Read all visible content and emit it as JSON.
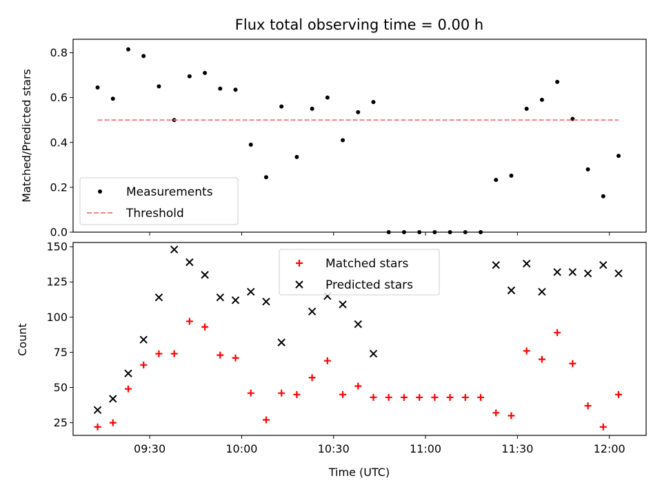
{
  "chart_data": [
    {
      "type": "scatter",
      "title": "Flux total observing time = 0.00 h",
      "xlabel": "",
      "ylabel": "Matched/Predicted stars",
      "xlim": [
        "09:05",
        "12:12"
      ],
      "ylim": [
        0,
        0.86
      ],
      "yticks": [
        0.0,
        0.2,
        0.4,
        0.6,
        0.8
      ],
      "ytick_labels": [
        "0.0",
        "0.2",
        "0.4",
        "0.6",
        "0.8"
      ],
      "legend_position": "lower-left",
      "series": [
        {
          "name": "Measurements",
          "marker": "dot",
          "color": "#000000",
          "x": [
            "09:13",
            "09:18",
            "09:23",
            "09:28",
            "09:33",
            "09:38",
            "09:43",
            "09:48",
            "09:53",
            "09:58",
            "10:03",
            "10:08",
            "10:13",
            "10:18",
            "10:23",
            "10:28",
            "10:33",
            "10:38",
            "10:43",
            "10:48",
            "10:53",
            "10:58",
            "11:03",
            "11:08",
            "11:13",
            "11:18",
            "11:23",
            "11:28",
            "11:33",
            "11:38",
            "11:43",
            "11:48",
            "11:53",
            "11:58",
            "12:03"
          ],
          "y": [
            0.645,
            0.595,
            0.815,
            0.785,
            0.65,
            0.5,
            0.695,
            0.71,
            0.64,
            0.635,
            0.39,
            0.245,
            0.56,
            0.335,
            0.55,
            0.6,
            0.41,
            0.535,
            0.58,
            0.0,
            0.0,
            0.0,
            0.0,
            0.0,
            0.0,
            0.0,
            0.233,
            0.252,
            0.55,
            0.59,
            0.67,
            0.505,
            0.28,
            0.16,
            0.34
          ]
        },
        {
          "name": "Threshold",
          "style": "dashed-line",
          "color": "#f08080",
          "x": [
            "09:13",
            "12:03"
          ],
          "y": [
            0.5,
            0.5
          ]
        }
      ]
    },
    {
      "type": "scatter",
      "title": "",
      "xlabel": "Time (UTC)",
      "ylabel": "Count",
      "xlim": [
        "09:05",
        "12:12"
      ],
      "ylim": [
        16,
        153
      ],
      "xticks": [
        "09:30",
        "10:00",
        "10:30",
        "11:00",
        "11:30",
        "12:00"
      ],
      "xtick_labels": [
        "09:30",
        "10:00",
        "10:30",
        "11:00",
        "11:30",
        "12:00"
      ],
      "yticks": [
        25,
        50,
        75,
        100,
        125,
        150
      ],
      "ytick_labels": [
        "25",
        "50",
        "75",
        "100",
        "125",
        "150"
      ],
      "legend_position": "upper-center",
      "series": [
        {
          "name": "Matched stars",
          "marker": "plus",
          "color": "#ff0000",
          "x": [
            "09:13",
            "09:18",
            "09:23",
            "09:28",
            "09:33",
            "09:38",
            "09:43",
            "09:48",
            "09:53",
            "09:58",
            "10:03",
            "10:08",
            "10:13",
            "10:18",
            "10:23",
            "10:28",
            "10:33",
            "10:38",
            "10:43",
            "10:48",
            "10:53",
            "10:58",
            "11:03",
            "11:08",
            "11:13",
            "11:18",
            "11:23",
            "11:28",
            "11:33",
            "11:38",
            "11:43",
            "11:48",
            "11:53",
            "11:58",
            "12:03"
          ],
          "y": [
            22,
            25,
            49,
            66,
            74,
            74,
            97,
            93,
            73,
            71,
            46,
            27,
            46,
            45,
            57,
            69,
            45,
            51,
            43,
            43,
            43,
            43,
            43,
            43,
            43,
            43,
            32,
            30,
            76,
            70,
            89,
            67,
            37,
            22,
            45
          ]
        },
        {
          "name": "Predicted stars",
          "marker": "x",
          "color": "#000000",
          "x": [
            "09:13",
            "09:18",
            "09:23",
            "09:28",
            "09:33",
            "09:38",
            "09:43",
            "09:48",
            "09:53",
            "09:58",
            "10:03",
            "10:08",
            "10:13",
            "10:23",
            "10:28",
            "10:33",
            "10:38",
            "10:43",
            "11:23",
            "11:28",
            "11:33",
            "11:38",
            "11:43",
            "11:48",
            "11:53",
            "11:58",
            "12:03"
          ],
          "y": [
            34,
            42,
            60,
            84,
            114,
            148,
            139,
            130,
            114,
            112,
            118,
            111,
            82,
            104,
            115,
            109,
            95,
            74,
            137,
            119,
            138,
            118,
            132,
            132,
            131,
            137,
            131
          ]
        }
      ]
    }
  ]
}
